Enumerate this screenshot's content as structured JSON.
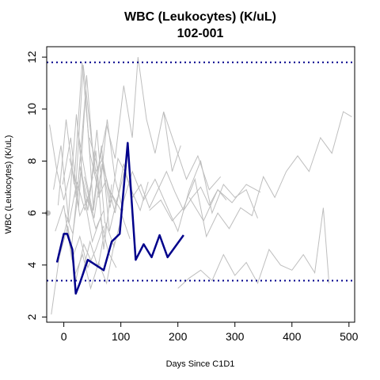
{
  "chart_data": {
    "type": "line",
    "title": "WBC (Leukocytes) (K/uL)",
    "subtitle": "102-001",
    "xlabel": "Days Since C1D1",
    "ylabel": "WBC (Leukocytes) (K/uL)",
    "xlim": [
      -30,
      510
    ],
    "ylim": [
      1.8,
      12.4
    ],
    "x_ticks": [
      0,
      100,
      200,
      300,
      400,
      500
    ],
    "y_ticks": [
      2,
      4,
      6,
      8,
      10,
      12
    ],
    "grid": false,
    "reference_lines": [
      {
        "y": 11.8,
        "color": "#00008B",
        "style": "dotted"
      },
      {
        "y": 3.4,
        "color": "#00008B",
        "style": "dotted"
      }
    ],
    "baseline_point": {
      "x": -28,
      "y": 6.0,
      "color": "#BEBEBE"
    },
    "highlight_series": {
      "color": "#00008B",
      "x": [
        -12,
        0,
        6,
        15,
        21,
        28,
        42,
        70,
        84,
        98,
        112,
        126,
        140,
        154,
        168,
        182,
        210
      ],
      "y": [
        4.1,
        5.2,
        5.2,
        4.6,
        2.9,
        3.3,
        4.2,
        3.8,
        4.9,
        5.2,
        8.7,
        4.2,
        4.8,
        4.3,
        5.15,
        4.3,
        5.15
      ]
    },
    "background_series_color": "#BEBEBE",
    "background_series": [
      {
        "x": [
          -25,
          -12,
          0,
          14,
          28,
          42,
          56,
          70
        ],
        "y": [
          9.4,
          7.6,
          6.5,
          7.8,
          5.9,
          6.6,
          5.4,
          6.1
        ]
      },
      {
        "x": [
          -22,
          -8,
          7,
          21,
          35,
          49,
          63
        ],
        "y": [
          2.1,
          4.3,
          5.5,
          3.4,
          4.8,
          4.1,
          3.9
        ]
      },
      {
        "x": [
          -18,
          -5,
          9,
          23,
          37,
          51
        ],
        "y": [
          6.9,
          8.6,
          5.6,
          7.2,
          6.1,
          7.4
        ]
      },
      {
        "x": [
          -15,
          0,
          14,
          28,
          42,
          56,
          70
        ],
        "y": [
          5.3,
          6.3,
          4.2,
          5.1,
          3.9,
          4.6,
          5.5
        ]
      },
      {
        "x": [
          -10,
          4,
          18,
          32,
          46,
          60
        ],
        "y": [
          6.3,
          9.6,
          7.1,
          11.8,
          8.3,
          6.9
        ]
      },
      {
        "x": [
          -6,
          8,
          22,
          36,
          50,
          64,
          78,
          92
        ],
        "y": [
          4.6,
          5.9,
          9.8,
          6.6,
          4.9,
          5.8,
          4.5,
          3.9
        ]
      },
      {
        "x": [
          -2,
          12,
          26,
          40,
          54,
          68,
          82
        ],
        "y": [
          7.1,
          8.9,
          6.2,
          11.3,
          7.5,
          8.1,
          6.4
        ]
      },
      {
        "x": [
          2,
          16,
          30,
          44,
          58,
          72
        ],
        "y": [
          6.0,
          5.2,
          7.6,
          6.3,
          9.2,
          5.6
        ]
      },
      {
        "x": [
          5,
          19,
          33,
          47,
          61,
          75,
          89
        ],
        "y": [
          5.6,
          3.6,
          4.4,
          3.1,
          4.1,
          3.3,
          4.9
        ]
      },
      {
        "x": [
          10,
          24,
          38,
          52,
          66,
          80,
          94
        ],
        "y": [
          8.1,
          6.9,
          10.6,
          6.1,
          8.6,
          5.3,
          6.6
        ]
      },
      {
        "x": [
          14,
          28,
          42,
          56,
          70,
          84
        ],
        "y": [
          4.8,
          7.8,
          6.1,
          8.4,
          4.6,
          7.1
        ]
      },
      {
        "x": [
          20,
          34,
          48,
          62,
          76,
          90,
          104
        ],
        "y": [
          6.6,
          11.7,
          8.9,
          6.6,
          9.6,
          7.3,
          6.1
        ]
      },
      {
        "x": [
          25,
          39,
          53,
          67,
          81,
          95,
          109,
          123
        ],
        "y": [
          9.1,
          7.3,
          5.8,
          7.9,
          6.2,
          8.1,
          7.5,
          6.6
        ]
      },
      {
        "x": [
          32,
          46,
          60,
          74,
          88,
          102,
          116
        ],
        "y": [
          3.6,
          4.9,
          3.9,
          5.6,
          4.7,
          5.9,
          5.0
        ]
      },
      {
        "x": [
          36,
          50,
          64,
          78,
          92,
          106,
          120,
          134,
          148
        ],
        "y": [
          7.4,
          6.0,
          8.3,
          7.0,
          6.3,
          7.6,
          6.8,
          6.1,
          7.2
        ]
      },
      {
        "x": [
          45,
          60,
          75,
          90,
          105,
          120,
          130,
          145,
          160,
          175,
          190,
          205
        ],
        "y": [
          8.9,
          7.7,
          9.4,
          8.1,
          10.9,
          8.9,
          12.0,
          9.6,
          8.3,
          9.9,
          7.6,
          8.6
        ]
      },
      {
        "x": [
          60,
          75,
          90,
          105,
          120,
          135,
          150,
          165,
          180,
          195,
          210,
          225,
          240,
          255,
          270,
          285
        ],
        "y": [
          6.6,
          7.3,
          6.0,
          7.9,
          6.6,
          7.1,
          6.2,
          6.9,
          7.6,
          6.8,
          6.1,
          6.6,
          7.0,
          6.3,
          6.9,
          6.5
        ]
      },
      {
        "x": [
          80,
          100,
          120,
          140,
          160,
          180,
          200,
          220,
          240,
          260,
          280,
          300,
          320,
          340
        ],
        "y": [
          6.9,
          6.1,
          7.6,
          6.5,
          7.3,
          6.3,
          5.3,
          6.9,
          8.0,
          6.0,
          7.1,
          6.6,
          6.9,
          5.8
        ]
      },
      {
        "x": [
          150,
          170,
          190,
          210,
          230,
          250,
          270,
          290,
          310,
          330,
          350,
          370,
          390,
          410,
          430,
          450,
          470,
          490,
          505
        ],
        "y": [
          6.1,
          6.5,
          5.7,
          6.2,
          7.3,
          5.1,
          6.0,
          5.4,
          6.2,
          5.9,
          7.4,
          6.6,
          7.6,
          8.2,
          7.6,
          8.9,
          8.3,
          9.9,
          9.7
        ]
      },
      {
        "x": [
          200,
          220,
          240,
          260,
          280,
          300,
          320,
          340,
          360,
          380,
          400,
          420,
          440,
          455,
          465
        ],
        "y": [
          3.1,
          3.5,
          3.8,
          3.4,
          4.4,
          3.6,
          4.1,
          3.3,
          4.6,
          4.0,
          3.8,
          4.4,
          3.7,
          6.2,
          3.3
        ]
      },
      {
        "x": [
          175,
          195,
          215,
          235,
          255,
          275
        ],
        "y": [
          9.9,
          8.6,
          7.3,
          8.2,
          6.9,
          7.4
        ]
      },
      {
        "x": [
          220,
          245,
          270,
          295,
          320,
          345
        ],
        "y": [
          6.6,
          5.7,
          6.9,
          6.4,
          7.1,
          6.8
        ]
      }
    ]
  }
}
